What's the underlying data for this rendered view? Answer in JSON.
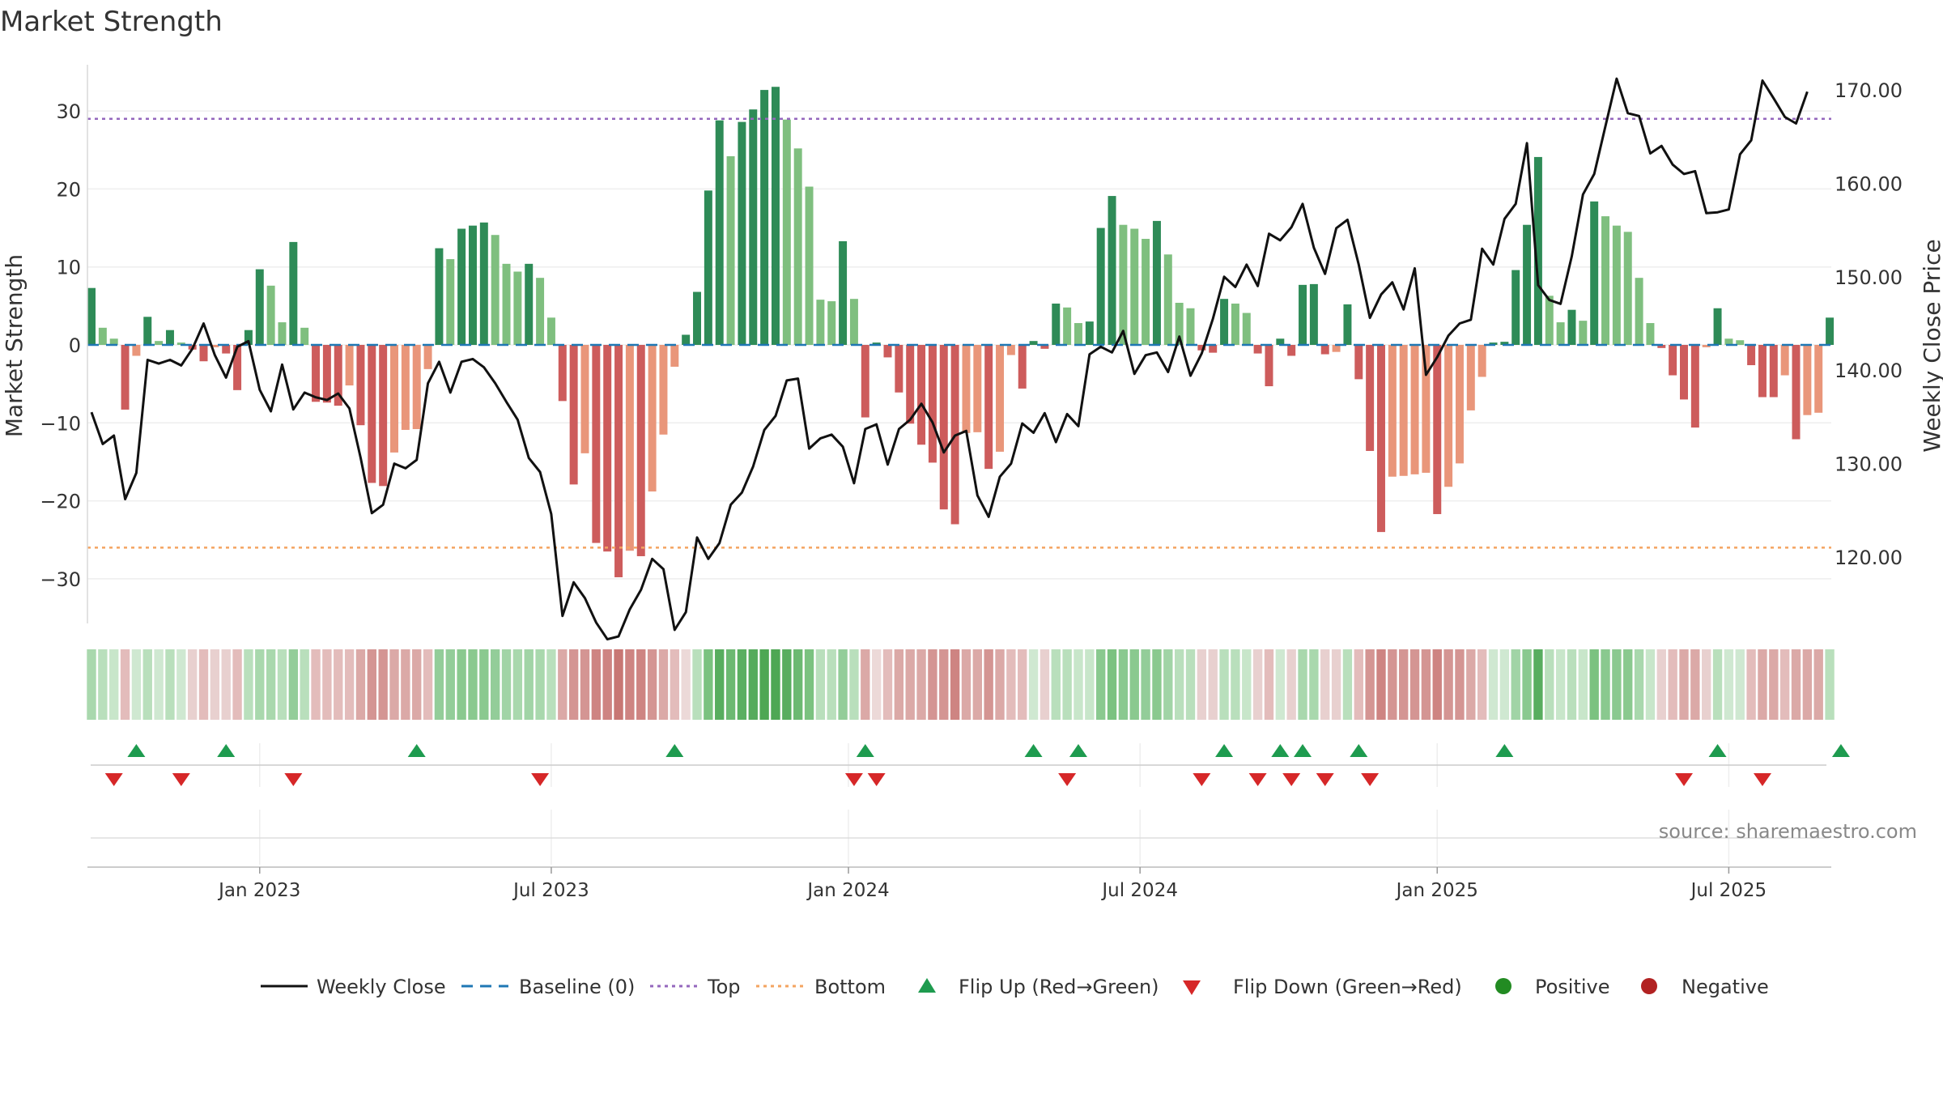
{
  "chart_data": {
    "type": "bar",
    "title": "Market Strength",
    "ylabel_left": "Market Strength",
    "ylabel_right": "Weekly Close Price",
    "ylim_left": [
      -36,
      36
    ],
    "ylim_right": [
      110,
      173
    ],
    "y_ticks_left": [
      30,
      20,
      10,
      0,
      -10,
      -20,
      -30
    ],
    "y_tick_labels_left": [
      "30",
      "20",
      "10",
      "0",
      "−10",
      "−20",
      "−30"
    ],
    "y_ticks_right": [
      170,
      160,
      150,
      140,
      130,
      120
    ],
    "y_tick_labels_right": [
      "170.00",
      "160.00",
      "150.00",
      "140.00",
      "130.00",
      "120.00"
    ],
    "x_tick_labels": [
      "Jan 2023",
      "Jul 2023",
      "Jan 2024",
      "Jul 2024",
      "Jan 2025",
      "Jul 2025"
    ],
    "x_tick_weeks": [
      15,
      41,
      67.5,
      93.5,
      120,
      146
    ],
    "top_line": 29,
    "bottom_line": -26,
    "baseline": 0,
    "strength": [
      7.3,
      2.2,
      0.8,
      -8.3,
      -1.4,
      3.6,
      0.5,
      1.9,
      0.3,
      -0.6,
      -2.1,
      -0.3,
      -1.1,
      -5.8,
      1.9,
      9.7,
      7.6,
      2.9,
      13.2,
      2.2,
      -7.3,
      -7.4,
      -7.8,
      -5.2,
      -10.3,
      -17.7,
      -18.1,
      -13.8,
      -10.9,
      -10.8,
      -3.1,
      12.4,
      11.0,
      14.9,
      15.3,
      15.7,
      14.1,
      10.4,
      9.4,
      10.4,
      8.6,
      3.5,
      -7.2,
      -17.9,
      -13.9,
      -25.4,
      -26.5,
      -29.8,
      -26.4,
      -27.1,
      -18.8,
      -11.5,
      -2.8,
      1.3,
      6.8,
      19.8,
      28.8,
      24.2,
      28.6,
      30.2,
      32.7,
      33.1,
      28.9,
      25.2,
      20.3,
      5.8,
      5.6,
      13.3,
      5.9,
      -9.3,
      0.3,
      -1.6,
      -6.1,
      -10.1,
      -12.8,
      -15.1,
      -21.1,
      -23.0,
      -11.3,
      -11.2,
      -15.9,
      -13.7,
      -1.3,
      -5.6,
      0.5,
      -0.5,
      5.3,
      4.8,
      2.8,
      3.0,
      15.0,
      19.1,
      15.4,
      14.9,
      13.6,
      15.9,
      11.6,
      5.4,
      4.7,
      -0.7,
      -1.0,
      5.9,
      5.3,
      4.1,
      -1.1,
      -5.3,
      0.8,
      -1.4,
      7.7,
      7.8,
      -1.2,
      -0.9,
      5.2,
      -4.4,
      -13.6,
      -24.0,
      -16.9,
      -16.8,
      -16.6,
      -16.4,
      -21.7,
      -18.2,
      -15.2,
      -8.4,
      -4.1,
      0.3,
      0.4,
      9.6,
      15.4,
      24.1,
      6.3,
      2.9,
      4.5,
      3.1,
      18.4,
      16.5,
      15.3,
      14.5,
      8.6,
      2.8,
      -0.4,
      -3.9,
      -7.0,
      -10.6,
      -0.3,
      4.7,
      0.8,
      0.6,
      -2.6,
      -6.7,
      -6.7,
      -3.9,
      -12.1,
      -9.0,
      -8.7,
      3.5
    ],
    "weekly_close": [
      135.5,
      132.1,
      133.0,
      126.2,
      129.0,
      141.1,
      140.7,
      141.1,
      140.5,
      142.3,
      145.0,
      141.6,
      139.2,
      142.5,
      143.1,
      137.9,
      135.6,
      140.6,
      135.8,
      137.6,
      137.1,
      136.8,
      137.5,
      135.9,
      130.6,
      124.7,
      125.6,
      130.0,
      129.5,
      130.4,
      138.6,
      140.9,
      137.6,
      140.9,
      141.2,
      140.3,
      138.6,
      136.6,
      134.7,
      130.6,
      129.1,
      124.6,
      113.7,
      117.3,
      115.6,
      113.0,
      111.2,
      111.5,
      114.4,
      116.5,
      119.8,
      118.7,
      112.2,
      114.1,
      122.1,
      119.8,
      121.5,
      125.6,
      126.9,
      129.7,
      133.6,
      135.1,
      138.9,
      139.1,
      131.6,
      132.7,
      133.1,
      131.8,
      127.9,
      133.7,
      134.2,
      129.9,
      133.7,
      134.7,
      136.4,
      134.4,
      131.2,
      133.0,
      133.5,
      126.6,
      124.3,
      128.6,
      130.0,
      134.3,
      133.3,
      135.4,
      132.3,
      135.3,
      134.0,
      141.7,
      142.5,
      141.9,
      144.2,
      139.6,
      141.6,
      141.9,
      139.8,
      143.6,
      139.4,
      141.8,
      145.5,
      150.0,
      148.9,
      151.3,
      149.0,
      154.6,
      153.9,
      155.3,
      157.8,
      153.1,
      150.3,
      155.2,
      156.1,
      151.3,
      145.6,
      148.1,
      149.4,
      146.5,
      150.9,
      139.5,
      141.4,
      143.7,
      145.0,
      145.4,
      153.0,
      151.3,
      156.2,
      157.8,
      164.3,
      149.1,
      147.5,
      147.1,
      152.2,
      158.8,
      161.0,
      166.1,
      171.2,
      167.5,
      167.2,
      163.2,
      164.0,
      162.0,
      161.0,
      161.3,
      156.8,
      156.9,
      157.2,
      163.1,
      164.6,
      171.0,
      169.1,
      167.1,
      166.4,
      169.8
    ],
    "heatmap_colors": [
      "#a9d8ad",
      "#b9dfbc",
      "#c8e6ca",
      "#e3bcbb",
      "#cfe8d1",
      "#b9dfbc",
      "#cfe8d1",
      "#b9dfbc",
      "#cfe8d1",
      "#e8d0cf",
      "#e3bcbb",
      "#e8d0cf",
      "#e8d0cf",
      "#e3bcbb",
      "#b9dfbc",
      "#a9d8ad",
      "#a9d8ad",
      "#b9dfbc",
      "#93cd99",
      "#b9dfbc",
      "#e3bcbb",
      "#e3bcbb",
      "#e3bcbb",
      "#e3bcbb",
      "#dba9a7",
      "#d49593",
      "#d49593",
      "#dba9a7",
      "#dba9a7",
      "#dba9a7",
      "#e3bcbb",
      "#93cd99",
      "#93cd99",
      "#8ac98f",
      "#8ac98f",
      "#8ac98f",
      "#93cd99",
      "#a1d4a6",
      "#a9d8ad",
      "#a1d4a6",
      "#a9d8ad",
      "#b9dfbc",
      "#dba9a7",
      "#d49593",
      "#d49593",
      "#ce8482",
      "#ce8482",
      "#c87774",
      "#ce8482",
      "#ce8482",
      "#d49593",
      "#dba9a7",
      "#e3bcbb",
      "#ecd9d8",
      "#b9dfbc",
      "#7bc280",
      "#58ad5f",
      "#6cb972",
      "#5aaf61",
      "#55ab5c",
      "#4ea754",
      "#4ea754",
      "#58ad5f",
      "#6cb972",
      "#7bc280",
      "#b9dfbc",
      "#b9dfbc",
      "#93cd99",
      "#b9dfbc",
      "#dba9a7",
      "#ecd9d8",
      "#e3bcbb",
      "#dba9a7",
      "#dba9a7",
      "#dba9a7",
      "#d49593",
      "#d49593",
      "#ce8482",
      "#dba9a7",
      "#dba9a7",
      "#d49593",
      "#dba9a7",
      "#e3bcbb",
      "#e3bcbb",
      "#cfe8d1",
      "#e8d0cf",
      "#b9dfbc",
      "#b9dfbc",
      "#c8e6ca",
      "#c8e6ca",
      "#8ac98f",
      "#7bc280",
      "#8ac98f",
      "#8ac98f",
      "#93cd99",
      "#8ac98f",
      "#a1d4a6",
      "#b9dfbc",
      "#b9dfbc",
      "#e8d0cf",
      "#e8d0cf",
      "#b9dfbc",
      "#b9dfbc",
      "#c8e6ca",
      "#e8d0cf",
      "#e3bcbb",
      "#cfe8d1",
      "#e8d0cf",
      "#a9d8ad",
      "#a9d8ad",
      "#e8d0cf",
      "#e8d0cf",
      "#b9dfbc",
      "#e3bcbb",
      "#d49593",
      "#ce8482",
      "#d49593",
      "#d49593",
      "#d49593",
      "#d49593",
      "#ce8482",
      "#d49593",
      "#d49593",
      "#dba9a7",
      "#e3bcbb",
      "#cfe8d1",
      "#cfe8d1",
      "#a1d4a6",
      "#8ac98f",
      "#58ad5f",
      "#b9dfbc",
      "#c8e6ca",
      "#b9dfbc",
      "#c8e6ca",
      "#7bc280",
      "#8ac98f",
      "#8ac98f",
      "#8ac98f",
      "#a9d8ad",
      "#c8e6ca",
      "#e8d0cf",
      "#e3bcbb",
      "#dba9a7",
      "#dba9a7",
      "#e8d0cf",
      "#b9dfbc",
      "#cfe8d1",
      "#cfe8d1",
      "#e3bcbb",
      "#dba9a7",
      "#dba9a7",
      "#e3bcbb",
      "#dba9a7",
      "#dba9a7",
      "#dba9a7",
      "#b9dfbc"
    ],
    "flip_up_weeks": [
      4,
      12,
      29,
      52,
      69,
      84,
      88,
      101,
      106,
      108,
      113,
      126,
      145,
      156
    ],
    "flip_down_weeks": [
      2,
      8,
      18,
      40,
      68,
      70,
      87,
      99,
      104,
      107,
      110,
      114,
      142,
      149
    ],
    "legend_position": "bottom"
  },
  "legend": {
    "weekly_close": "Weekly Close",
    "baseline": "Baseline (0)",
    "top": "Top",
    "bottom": "Bottom",
    "flip_up": "Flip Up (Red→Green)",
    "flip_down": "Flip Down (Green→Red)",
    "positive": "Positive",
    "negative": "Negative"
  },
  "source": "source: sharemaestro.com",
  "colors": {
    "pos_dark": "#2e8b57",
    "pos_light": "#7fbf7f",
    "neg_dark": "#cd5c5c",
    "neg_light": "#e9967a",
    "close_line": "#111111",
    "baseline": "#1f77b4",
    "top": "#9467bd",
    "bottom": "#f4a460",
    "flip_up": "#1e9b4f",
    "flip_down": "#d62728",
    "positive_dot": "#228b22",
    "negative_dot": "#b22222"
  }
}
